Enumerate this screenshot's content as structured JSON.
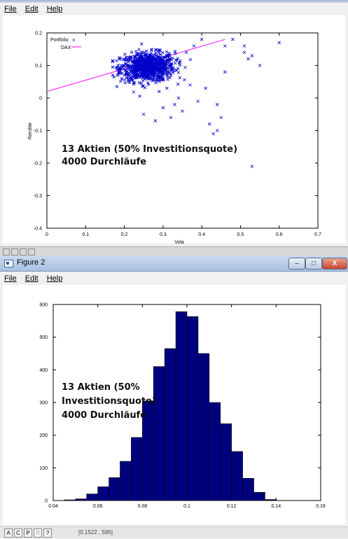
{
  "figure1": {
    "menu": [
      "File",
      "Edit",
      "Help"
    ],
    "annotation": [
      "13 Aktien (50% Investitionsquote)",
      "4000 Durchläufe"
    ],
    "chart_data": {
      "type": "scatter",
      "xlabel": "Vola",
      "ylabel": "Rendite",
      "xlim": [
        0,
        0.7
      ],
      "ylim": [
        -0.4,
        0.2
      ],
      "x_ticks": [
        "0",
        "0.1",
        "0.2",
        "0.3",
        "0.4",
        "0.5",
        "0.6",
        "0.7"
      ],
      "y_ticks": [
        "0.2",
        "0.1",
        "0",
        "-0.1",
        "-0.2",
        "-0.3",
        "-0.4"
      ],
      "legend_placement": "top-left",
      "series": [
        {
          "name": "Portfolio",
          "marker": "x",
          "color": "#0000cc",
          "cluster_center": [
            0.26,
            0.095
          ],
          "cluster_count": 4000,
          "outliers": [
            [
              0.6,
              0.17
            ],
            [
              0.53,
              0.13
            ],
            [
              0.55,
              0.1
            ],
            [
              0.51,
              0.16
            ],
            [
              0.52,
              0.12
            ],
            [
              0.48,
              0.18
            ],
            [
              0.46,
              0.16
            ],
            [
              0.44,
              -0.02
            ],
            [
              0.43,
              -0.11
            ],
            [
              0.45,
              -0.06
            ],
            [
              0.42,
              -0.08
            ],
            [
              0.53,
              -0.21
            ],
            [
              0.38,
              0.16
            ],
            [
              0.36,
              0.14
            ],
            [
              0.33,
              -0.02
            ],
            [
              0.34,
              0.0
            ],
            [
              0.3,
              -0.03
            ],
            [
              0.28,
              -0.07
            ],
            [
              0.35,
              -0.04
            ],
            [
              0.4,
              0.18
            ],
            [
              0.39,
              -0.01
            ],
            [
              0.31,
              0.03
            ],
            [
              0.29,
              0.02
            ],
            [
              0.32,
              -0.06
            ],
            [
              0.37,
              0.04
            ],
            [
              0.25,
              -0.05
            ],
            [
              0.41,
              0.03
            ],
            [
              0.44,
              -0.1
            ],
            [
              0.51,
              0.14
            ],
            [
              0.46,
              0.08
            ]
          ]
        },
        {
          "name": "DAX",
          "type": "line",
          "color": "#ff00ff",
          "x": [
            0,
            0.46
          ],
          "y": [
            0.02,
            0.18
          ]
        }
      ]
    }
  },
  "figure2": {
    "title": "Figure 2",
    "menu": [
      "File",
      "Edit",
      "Help"
    ],
    "controls": {
      "minimize": "–",
      "maximize": "□",
      "close": "X"
    },
    "annotation": [
      "13 Aktien (50%",
      "Investitionsquote)",
      "4000 Durchläufe"
    ],
    "status": {
      "buttons": [
        "A",
        "C",
        "P",
        "R",
        "?"
      ],
      "coords": "[0.1522 , 595]"
    },
    "chart_data": {
      "type": "bar",
      "title": "",
      "xlim": [
        0.04,
        0.16
      ],
      "ylim": [
        0,
        600
      ],
      "x_ticks": [
        "0.04",
        "0.06",
        "0.08",
        "0.1",
        "0.12",
        "0.14",
        "0.16"
      ],
      "y_ticks": [
        "600",
        "500",
        "400",
        "300",
        "200",
        "100",
        "0"
      ],
      "bin_width": 0.005,
      "bins": [
        0.0475,
        0.0525,
        0.0575,
        0.0625,
        0.0675,
        0.0725,
        0.0775,
        0.0825,
        0.0875,
        0.0925,
        0.0975,
        0.1025,
        0.1075,
        0.1125,
        0.1175,
        0.1225,
        0.1275,
        0.1325,
        0.1375
      ],
      "values": [
        2,
        5,
        20,
        42,
        70,
        120,
        193,
        305,
        410,
        465,
        578,
        563,
        450,
        300,
        235,
        150,
        68,
        25,
        3
      ],
      "bar_color": "#00007f"
    }
  }
}
